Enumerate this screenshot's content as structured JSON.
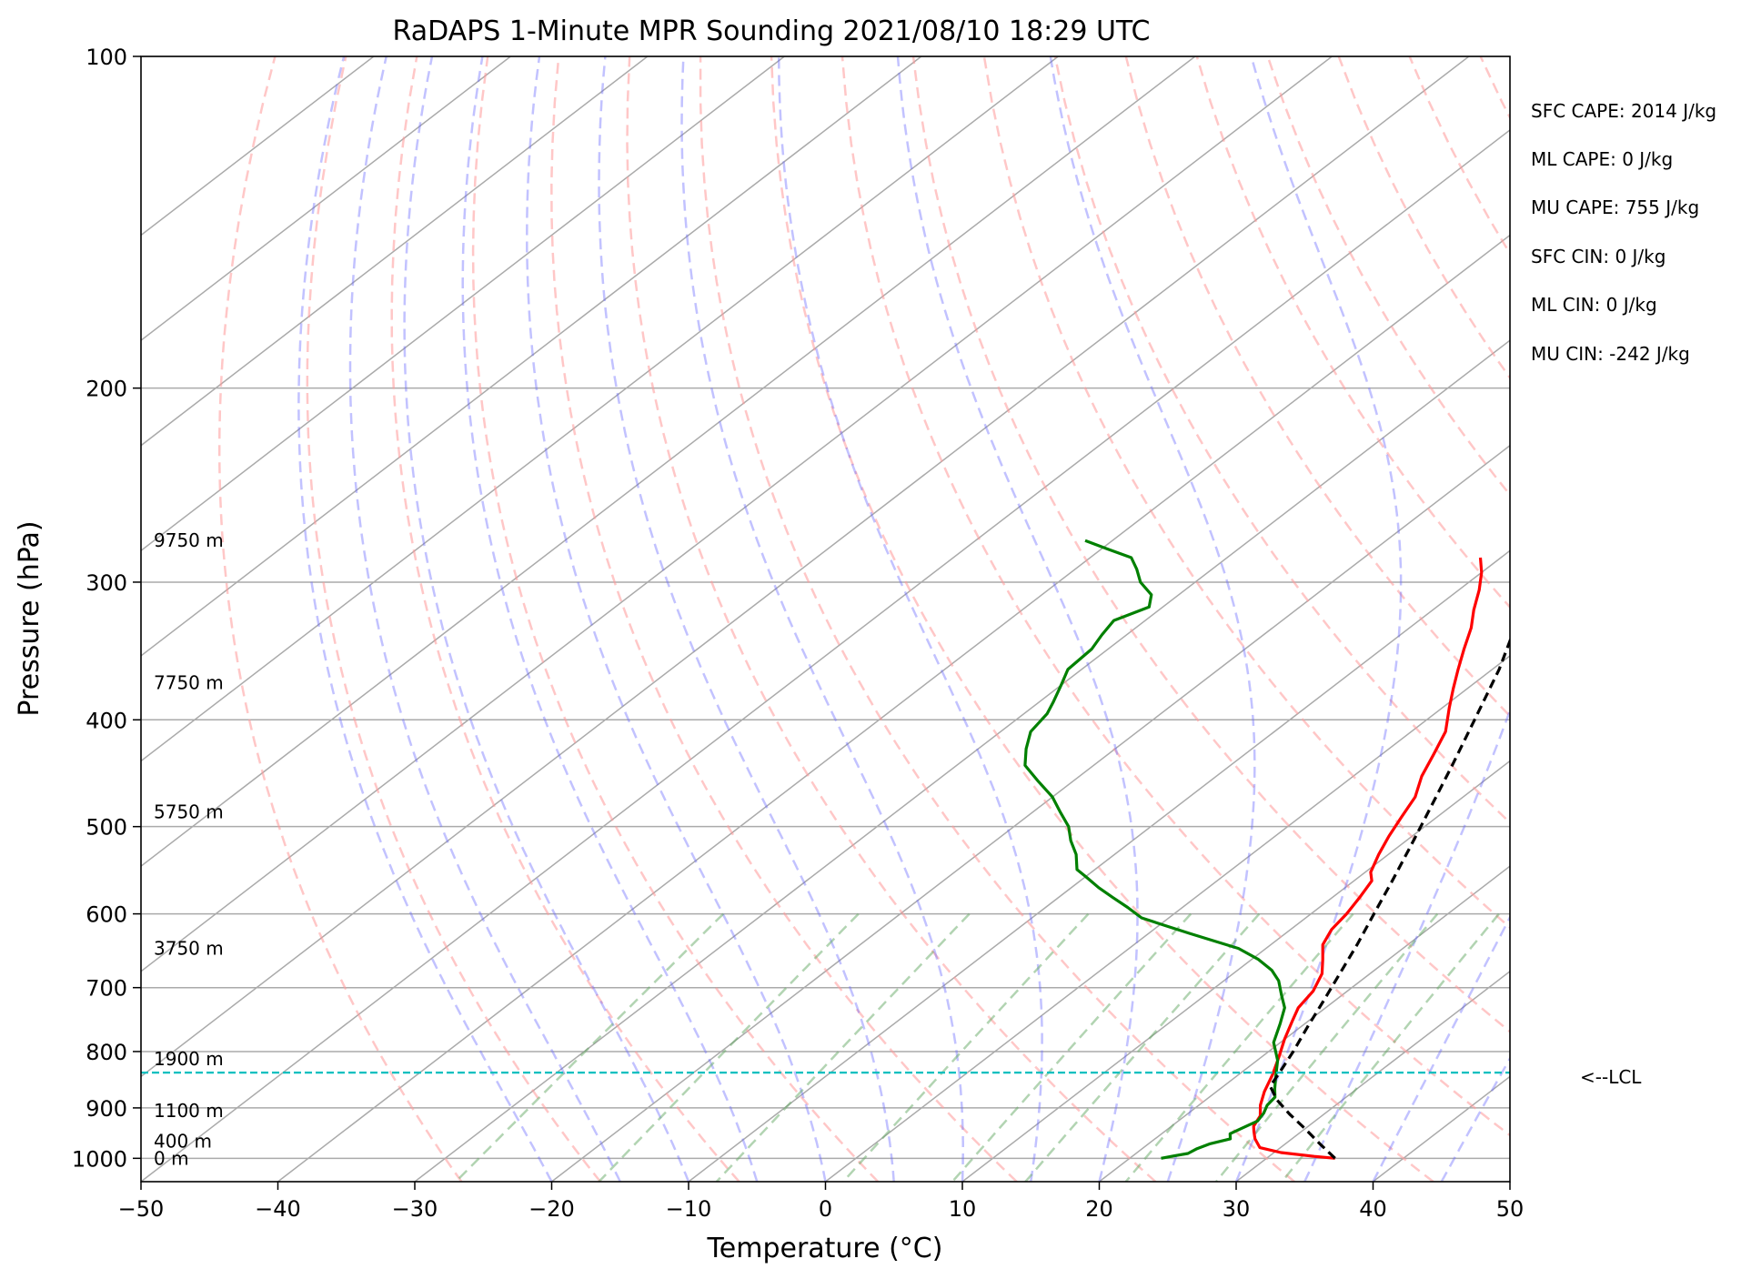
{
  "chart_data": {
    "type": "skew-t",
    "title": "RaDAPS 1-Minute MPR Sounding 2021/08/10 18:29 UTC",
    "xlabel": "Temperature (°C)",
    "ylabel": "Pressure (hPa)",
    "xlim": [
      -50,
      50
    ],
    "ylim": [
      1050,
      100
    ],
    "y_scale": "log",
    "grid": true,
    "x_ticks": [
      -50,
      -40,
      -30,
      -20,
      -10,
      0,
      10,
      20,
      30,
      40,
      50
    ],
    "x_tick_labels": [
      "−50",
      "−40",
      "−30",
      "−20",
      "−10",
      "0",
      "10",
      "20",
      "30",
      "40",
      "50"
    ],
    "y_ticks": [
      100,
      200,
      300,
      400,
      500,
      600,
      700,
      800,
      900,
      1000
    ],
    "y_tick_labels": [
      "100",
      "200",
      "300",
      "400",
      "500",
      "600",
      "700",
      "800",
      "900",
      "1000"
    ],
    "series": [
      {
        "color": "#ff0000",
        "points": [
          [
            35.0,
            1000
          ],
          [
            33.3,
            996
          ],
          [
            30.5,
            988
          ],
          [
            28.5,
            978
          ],
          [
            27.3,
            960
          ],
          [
            26.5,
            945
          ],
          [
            26.0,
            935
          ],
          [
            25.5,
            915
          ],
          [
            24.5,
            895
          ],
          [
            23.5,
            870
          ],
          [
            22.5,
            840
          ],
          [
            21.3,
            810
          ],
          [
            20.0,
            780
          ],
          [
            18.8,
            750
          ],
          [
            18.0,
            730
          ],
          [
            17.5,
            705
          ],
          [
            16.5,
            680
          ],
          [
            15.2,
            660
          ],
          [
            13.8,
            640
          ],
          [
            13.0,
            620
          ],
          [
            12.6,
            600
          ],
          [
            12.0,
            580
          ],
          [
            11.3,
            560
          ],
          [
            10.4,
            550
          ],
          [
            9.3,
            530
          ],
          [
            8.3,
            510
          ],
          [
            7.4,
            490
          ],
          [
            6.5,
            470
          ],
          [
            5.0,
            450
          ],
          [
            3.8,
            430
          ],
          [
            2.5,
            410
          ],
          [
            0.5,
            390
          ],
          [
            -1.0,
            375
          ],
          [
            -2.5,
            360
          ],
          [
            -4.0,
            345
          ],
          [
            -5.5,
            330
          ],
          [
            -7.0,
            318
          ],
          [
            -8.5,
            305
          ],
          [
            -10.0,
            294
          ],
          [
            -11.5,
            285
          ]
        ]
      },
      {
        "color": "#008000",
        "points": [
          [
            22.3,
            1000
          ],
          [
            23.0,
            995
          ],
          [
            23.8,
            990
          ],
          [
            24.0,
            980
          ],
          [
            24.5,
            970
          ],
          [
            25.5,
            960
          ],
          [
            25.0,
            950
          ],
          [
            25.3,
            940
          ],
          [
            25.8,
            925
          ],
          [
            25.5,
            910
          ],
          [
            25.0,
            895
          ],
          [
            24.8,
            880
          ],
          [
            24.0,
            865
          ],
          [
            23.0,
            845
          ],
          [
            21.5,
            815
          ],
          [
            19.5,
            785
          ],
          [
            18.2,
            755
          ],
          [
            17.0,
            730
          ],
          [
            15.5,
            710
          ],
          [
            14.0,
            690
          ],
          [
            12.5,
            675
          ],
          [
            10.5,
            660
          ],
          [
            8.0,
            645
          ],
          [
            5.5,
            635
          ],
          [
            3.0,
            625
          ],
          [
            0.5,
            615
          ],
          [
            -2.0,
            605
          ],
          [
            -4.0,
            592
          ],
          [
            -6.0,
            580
          ],
          [
            -8.0,
            568
          ],
          [
            -10.0,
            555
          ],
          [
            -11.3,
            547
          ],
          [
            -12.8,
            530
          ],
          [
            -14.5,
            515
          ],
          [
            -16.0,
            500
          ],
          [
            -18.0,
            485
          ],
          [
            -20.0,
            470
          ],
          [
            -22.5,
            455
          ],
          [
            -25.0,
            440
          ],
          [
            -26.5,
            425
          ],
          [
            -27.8,
            410
          ],
          [
            -28.3,
            395
          ],
          [
            -29.0,
            385
          ],
          [
            -30.0,
            372
          ],
          [
            -31.0,
            360
          ],
          [
            -31.2,
            345
          ],
          [
            -31.8,
            335
          ],
          [
            -32.3,
            325
          ],
          [
            -31.0,
            316
          ],
          [
            -32.0,
            308
          ],
          [
            -34.0,
            300
          ],
          [
            -35.5,
            292
          ],
          [
            -37.0,
            285
          ],
          [
            -39.5,
            280
          ],
          [
            -42.0,
            275
          ]
        ]
      },
      {
        "style": "dashed",
        "color": "#000000",
        "points": [
          [
            35.0,
            1000
          ],
          [
            32.5,
            970
          ],
          [
            30.0,
            940
          ],
          [
            27.5,
            912
          ],
          [
            25.2,
            885
          ],
          [
            23.4,
            860
          ],
          [
            22.8,
            836
          ],
          [
            21.8,
            800
          ],
          [
            20.5,
            760
          ],
          [
            19.2,
            720
          ],
          [
            17.8,
            680
          ],
          [
            16.3,
            640
          ],
          [
            14.6,
            600
          ],
          [
            12.8,
            560
          ],
          [
            10.8,
            520
          ],
          [
            8.6,
            480
          ],
          [
            6.2,
            440
          ],
          [
            3.5,
            400
          ],
          [
            0.5,
            360
          ],
          [
            -2.8,
            325
          ],
          [
            -6.2,
            295
          ],
          [
            -8.2,
            280
          ]
        ]
      }
    ],
    "height_labels": [
      "9750 m",
      "7750 m",
      "5750 m",
      "3750 m",
      "1900 m",
      "1100 m",
      "400 m",
      "0 m"
    ],
    "height_label_pressures": [
      275,
      370,
      485,
      645,
      812,
      905,
      965,
      1000
    ],
    "lcl": {
      "pressure": 836,
      "label": "<--LCL",
      "color": "#00bfbf"
    },
    "stats": [
      "SFC CAPE: 2014 J/kg",
      "ML CAPE: 0 J/kg",
      "MU CAPE: 755 J/kg",
      "SFC CIN: 0 J/kg",
      "ML CIN: 0 J/kg",
      "MU CIN: -242 J/kg"
    ]
  }
}
